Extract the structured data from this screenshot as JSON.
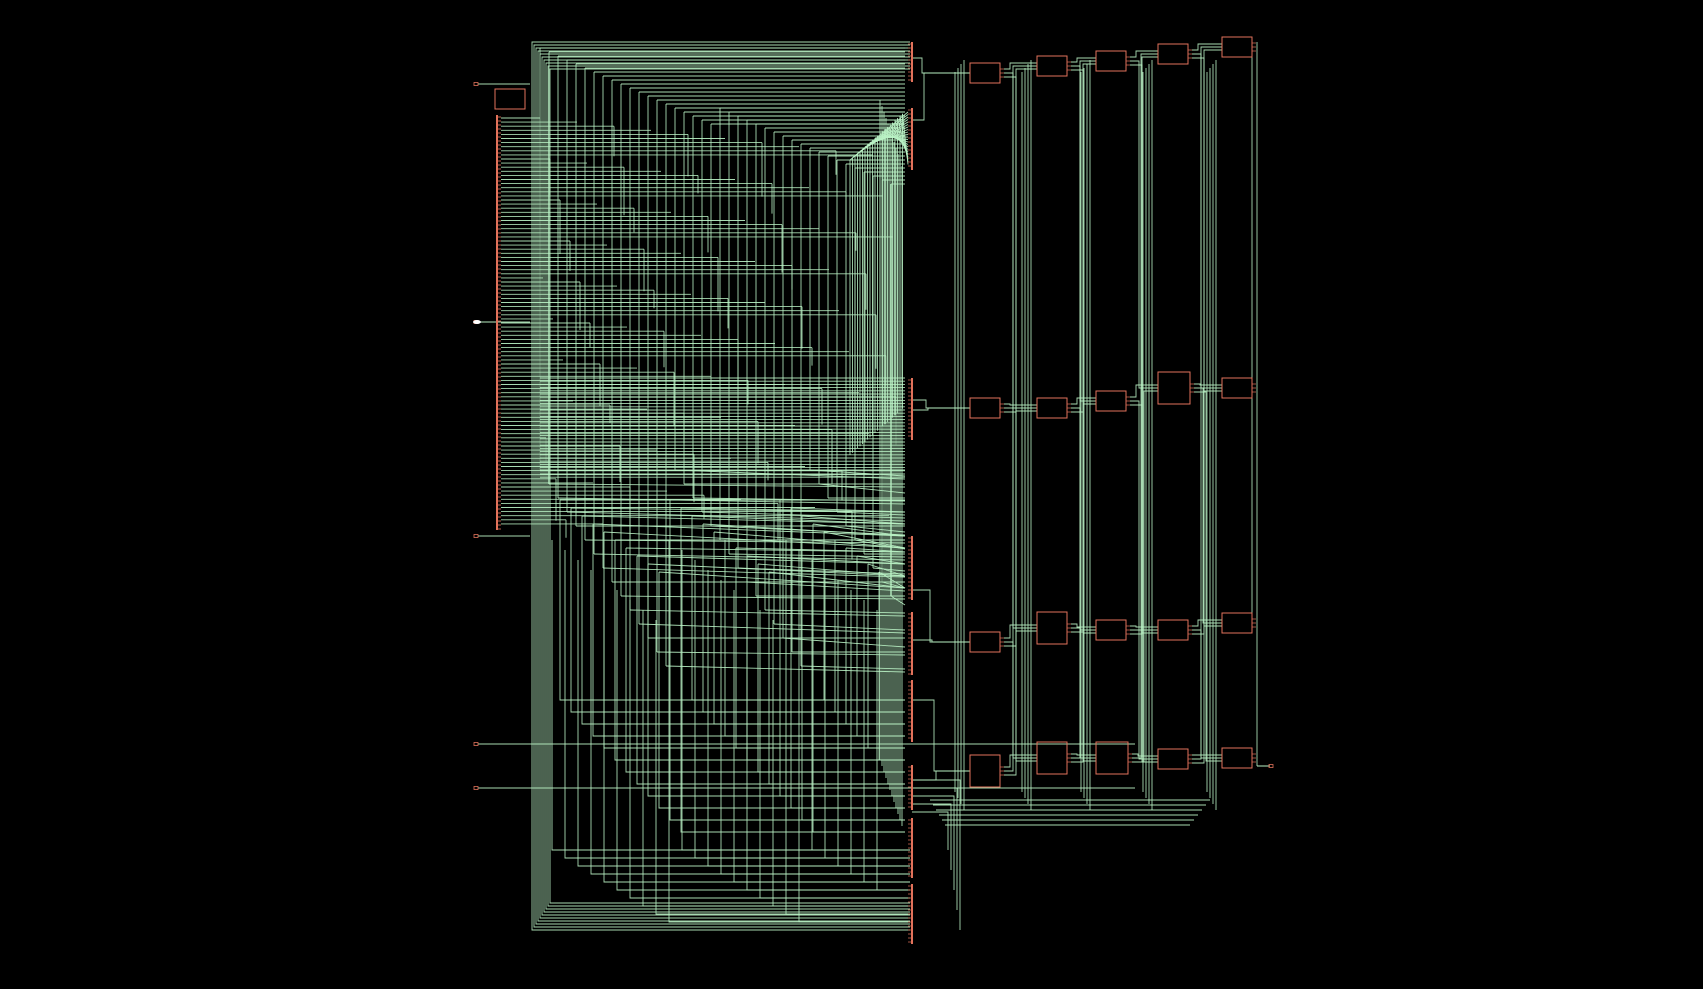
{
  "viewer": {
    "background": "#000000"
  },
  "schematic": {
    "wire_color": "#b9f2c4",
    "cell_color": "#e2725b",
    "port_color": "#e2725b",
    "cell_columns": 5,
    "cells_per_column": 4,
    "input_ports": 6,
    "output_ports": 1,
    "pin_bank_count": 9,
    "description_visible_text": ""
  }
}
